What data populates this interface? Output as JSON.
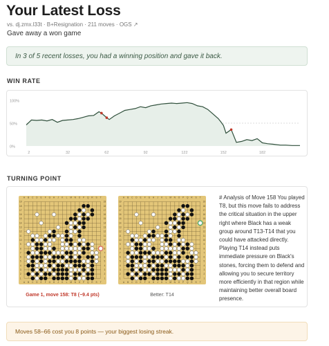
{
  "header": {
    "title": "Your Latest Loss",
    "meta": "vs. dj.zmx.l33t · B+Resignation · 211 moves · ",
    "ogs_link": "OGS ↗",
    "subtitle": "Gave away a won game"
  },
  "insight": {
    "text": "In 3 of 5 recent losses, you had a winning position and gave it back."
  },
  "win_rate": {
    "heading": "WIN RATE"
  },
  "chart_data": {
    "type": "line",
    "title": "",
    "xlabel": "",
    "ylabel": "",
    "y_tick_labels": [
      "100%",
      "50%",
      "0%"
    ],
    "x_tick_labels": [
      "2",
      "32",
      "62",
      "92",
      "122",
      "152",
      "182"
    ],
    "xlim": [
      0,
      211
    ],
    "ylim": [
      0,
      100
    ],
    "reference_line": 50,
    "series": [
      {
        "x": [
          0,
          4,
          8,
          12,
          16,
          20,
          24,
          28,
          32,
          36,
          40,
          44,
          48,
          52,
          56,
          58,
          62,
          64,
          68,
          72,
          76,
          80,
          84,
          88,
          92,
          96,
          100,
          104,
          108,
          112,
          116,
          120,
          124,
          128,
          132,
          136,
          140,
          144,
          148,
          150,
          152,
          154,
          158,
          162,
          166,
          170,
          174,
          178,
          182,
          186,
          190,
          196,
          200,
          205,
          211
        ],
        "values": [
          46,
          57,
          56,
          57,
          55,
          58,
          52,
          56,
          57,
          58,
          60,
          63,
          66,
          67,
          75,
          72,
          62,
          58,
          66,
          72,
          78,
          80,
          82,
          86,
          84,
          88,
          90,
          92,
          93,
          94,
          93,
          94,
          95,
          93,
          88,
          86,
          80,
          70,
          60,
          53,
          45,
          28,
          36,
          8,
          10,
          14,
          12,
          16,
          7,
          5,
          4,
          2,
          2,
          1,
          1
        ]
      }
    ],
    "highlight_points": [
      {
        "x": 58,
        "y": 72
      },
      {
        "x": 62,
        "y": 62
      },
      {
        "x": 158,
        "y": 36
      }
    ]
  },
  "turning_point": {
    "heading": "TURNING POINT",
    "board_columns": [
      "A",
      "B",
      "C",
      "D",
      "E",
      "F",
      "G",
      "H",
      "J",
      "K",
      "L",
      "M",
      "N",
      "O",
      "P",
      "Q",
      "R",
      "S",
      "T"
    ],
    "board_rows": [
      "19",
      "18",
      "17",
      "16",
      "15",
      "14",
      "13",
      "12",
      "11",
      "10",
      "9",
      "8",
      "7",
      "6",
      "5",
      "4",
      "3",
      "2",
      "1"
    ],
    "caption_played": "Game 1, move 158: T8 (−9.4 pts)",
    "caption_better": "Better: T14",
    "analysis": "# Analysis of Move 158 You played T8, but this move fails to address the critical situation in the upper right where Black has a weak group around T13-T14 that you could have attacked directly. Playing T14 instead puts immediate pressure on Black's stones, forcing them to defend and allowing you to secure territory more efficiently in that region while maintaining better overall board presence.",
    "board_position": [
      "...................",
      "..............BB...",
      ".............BW.B..",
      "...W...W....BWBWB..",
      "...........BBWBB...",
      "....W.....BWWBB....",
      "........W..WBWB....",
      ".W....WB..BWWB.....",
      "..WW.WBBWWBW.B.....",
      "..BWWBWW.WBB.WW....",
      ".WWBBWW..WWBWBWBW..",
      "..WBBWWB.WWWWWBBW..",
      ".BWWBBBWWWBBWWB.WW.",
      ".WBBBWWBBBWBWB.BBW.",
      ".WBWBWBBWWBBBBWWBW.",
      ".BBWWWBWBBWWBBBWB..",
      "..BWBWWBBBBWWWBWB..",
      ".BWBWBBWBBBWBBWBB..",
      "..BWBB.BBBBWBWWBB.."
    ],
    "played_move": "T8",
    "better_move": "T14"
  },
  "streak": {
    "text": "Moves 58–66 cost you 8 points — your biggest losing streak."
  },
  "colors": {
    "line": "#2f4f3b",
    "fill": "#e7efe9",
    "marker": "#c0392b",
    "board": "#e3c679",
    "played_marker": "#e2685c",
    "better_marker": "#3fae6a"
  }
}
